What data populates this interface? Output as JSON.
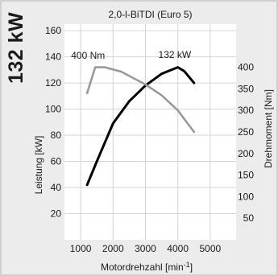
{
  "header": {
    "big_label": "132 kW"
  },
  "chart_data": {
    "type": "line",
    "title": "2,0-l-BiTDI (Euro 5)",
    "xlabel": "Motordrehzahl [min-1]",
    "xlabel_main": "Motordrehzahl [min",
    "xlabel_sup": "-1",
    "xlabel_end": "]",
    "ylabel_left": "Leistung [kW]",
    "ylabel_right": "Drehmoment [Nm]",
    "x_ticks": [
      1000,
      2000,
      3000,
      4000,
      5000
    ],
    "x_range": [
      500,
      5800
    ],
    "y_left_ticks": [
      20,
      40,
      60,
      80,
      100,
      120,
      140,
      160
    ],
    "y_left_range": [
      0,
      165
    ],
    "y_right_ticks": [
      50,
      100,
      150,
      200,
      250,
      300,
      350,
      400
    ],
    "y_right_range": [
      0,
      500
    ],
    "grid": true,
    "series": [
      {
        "name": "132 kW",
        "axis": "left",
        "color": "#000000",
        "x": [
          1200,
          1500,
          2000,
          2500,
          3000,
          3500,
          4000,
          4200,
          4500
        ],
        "y": [
          42,
          60,
          89,
          106,
          118,
          127,
          132,
          129,
          120
        ]
      },
      {
        "name": "400 Nm",
        "axis": "right",
        "color": "#9a9a9a",
        "x": [
          1200,
          1450,
          1750,
          2250,
          3000,
          3500,
          4000,
          4500
        ],
        "y": [
          340,
          400,
          400,
          390,
          360,
          335,
          300,
          250
        ]
      }
    ]
  }
}
